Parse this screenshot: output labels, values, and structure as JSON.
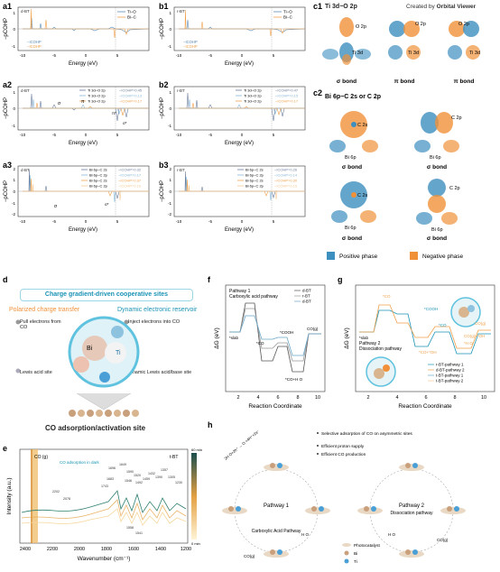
{
  "panels": {
    "a1": {
      "label": "a1",
      "corner": "d-BT",
      "legend": [
        "Ti−O",
        "Bi−C"
      ],
      "icohp": [
        "−ICOHP",
        "−ICOHP"
      ],
      "xlabel": "Energy (eV)",
      "ylabel": "−pCOHP",
      "xticks": [
        "-10",
        "-5",
        "0",
        "5"
      ],
      "yticks": [
        "1",
        "0",
        "-1"
      ]
    },
    "b1": {
      "label": "b1",
      "corner": "r-BT",
      "legend": [
        "Ti−O",
        "Bi−C"
      ],
      "icohp": [
        "−ICOHP",
        "−ICOHP"
      ],
      "xlabel": "Energy (eV)",
      "ylabel": "−pCOHP",
      "xticks": [
        "-10",
        "-5",
        "0",
        "5"
      ],
      "yticks": [
        "1",
        "0",
        "-1"
      ]
    },
    "a2": {
      "label": "a2",
      "corner": "d-BT",
      "legend": [
        "Ti 3d−O 2p",
        "Ti 3d−O 2p",
        "Ti 3d−O 2p"
      ],
      "icohp": [
        "−ICOHP=0.45",
        "−ICOHP=0.13",
        "−ICOHP=0.17"
      ],
      "xlabel": "Energy (eV)",
      "ylabel": "−pCOHP",
      "xticks": [
        "-10",
        "-5",
        "0",
        "5"
      ],
      "yticks": [
        "1",
        "0",
        "-1"
      ],
      "notes": [
        "σ",
        "π",
        "π*",
        "σ*"
      ]
    },
    "b2": {
      "label": "b2",
      "corner": "r-BT",
      "legend": [
        "Ti 3d−O 2p",
        "Ti 3d−O 2p",
        "Ti 3d−O 2p"
      ],
      "icohp": [
        "−ICOHP=0.47",
        "−ICOHP=0.15",
        "−ICOHP=0.17"
      ],
      "xlabel": "Energy (eV)",
      "ylabel": "−pCOHP",
      "xticks": [
        "-10",
        "-5",
        "0",
        "5"
      ],
      "yticks": [
        "1",
        "0",
        "-1"
      ]
    },
    "a3": {
      "label": "a3",
      "corner": "d-BT",
      "legend": [
        "Bi 6p−C 2s",
        "Bi 6p−C 2p",
        "Bi 6p−C 2s",
        "Bi 6p−C 2p"
      ],
      "icohp": [
        "−ICOHP=0.32",
        "−ICOHP=0.17",
        "−ICOHP=0.37",
        "−ICOHP=0.19"
      ],
      "xlabel": "Energy (eV)",
      "ylabel": "−pCOHP",
      "xticks": [
        "-10",
        "-5",
        "0",
        "5"
      ],
      "yticks": [
        "2",
        "1",
        "0",
        "-1",
        "-2"
      ],
      "notes": [
        "σ",
        "σ*"
      ]
    },
    "b3": {
      "label": "b3",
      "corner": "r-BT",
      "legend": [
        "Bi 6p−C 2s",
        "Bi 6p−C 2p",
        "Bi 6p−C 2s",
        "Bi 6p−C 2p"
      ],
      "icohp": [
        "−ICOHP=0.26",
        "−ICOHP=0.14",
        "−ICOHP=0.30",
        "−ICOHP=0.15"
      ],
      "xlabel": "Energy (eV)",
      "ylabel": "−pCOHP",
      "xticks": [
        "-10",
        "-5",
        "0",
        "5"
      ],
      "yticks": [
        "2",
        "1",
        "0",
        "-1",
        "-2"
      ]
    }
  },
  "c": {
    "c1_label": "c1",
    "c1_title": "Ti 3d−O 2p",
    "credit_prefix": "Created by ",
    "credit_name": "Orbital Viewer",
    "c1_orbitals": [
      [
        "O 2p",
        "Ti 3d"
      ],
      [
        "O 2p",
        "Ti 3d"
      ],
      [
        "O 2p",
        "Ti 3d"
      ]
    ],
    "c1_bonds": [
      "σ bond",
      "π bond",
      "π bond"
    ],
    "c2_label": "c2",
    "c2_title": "Bi 6p−C 2s or C 2p",
    "c2_orbitals": [
      [
        "C 2s",
        "Bi 6p"
      ],
      [
        "C 2p",
        "Bi 6p"
      ],
      [
        "C 2s",
        "Bi 6p"
      ],
      [
        "C 2p",
        "Bi 6p"
      ]
    ],
    "c2_bonds": [
      "σ bond",
      "σ bond",
      "σ bond",
      "σ bond"
    ],
    "legend": [
      "Positive phase",
      "Negative phase"
    ],
    "colors": {
      "positive": "#3d8fbf",
      "negative": "#f0913a"
    }
  },
  "d": {
    "label": "d",
    "title": "Charge gradient-driven cooperative sites",
    "left_head": "Polarized charge transfer",
    "right_head": "Dynamic electronic reservoir",
    "notes": [
      "Pull electrons from CO",
      "Inject electrons into CO",
      "Lewis acid site",
      "Dynamic Lewis acid/base site"
    ],
    "atoms": [
      "Bi",
      "Ti"
    ],
    "caption": "CO adsorption/activation site"
  },
  "f": {
    "label": "f",
    "pathway_title": "Pathway 1",
    "pathway_sub": "Carboxylic acid pathway",
    "legend": [
      "d-BT",
      "r-BT",
      "d-BT"
    ],
    "xlabel": "Reaction Coordinate",
    "ylabel": "ΔG (eV)",
    "xticks": [
      "2",
      "4",
      "6",
      "8",
      "10"
    ],
    "states": [
      "*slab",
      "*CO",
      "*COOH",
      "*CO+H O",
      "CO(g)"
    ]
  },
  "g": {
    "label": "g",
    "pathway_title": "Pathway 2",
    "pathway_sub": "Dissociation pathway",
    "legend": [
      "r-BT-pathway 1",
      "d-BT-pathway 2",
      "t-BT-pathway 1",
      "t-BT-pathway 2"
    ],
    "xlabel": "Reaction Coordinate",
    "ylabel": "ΔG (eV)",
    "xticks": [
      "2",
      "4",
      "6",
      "8",
      "10"
    ],
    "states": [
      "*slab",
      "*CO",
      "*COOH",
      "*CO",
      "CO(g)",
      "*H O",
      "*CO+*OH",
      "CO(g)+*OH"
    ]
  },
  "e": {
    "label": "e",
    "tag": "t-BT",
    "xlabel": "Wavenumber (cm⁻¹)",
    "ylabel": "Intensity (a.u.)",
    "xticks": [
      "2400",
      "2200",
      "2000",
      "1800",
      "1600",
      "1400",
      "1200"
    ],
    "co2": "CO (g)",
    "annotation": "CO adsorption in dark",
    "peaks": [
      "2202",
      "2078",
      "1696",
      "1649",
      "1590",
      "1546",
      "1520",
      "1492",
      "1459",
      "1432",
      "1390",
      "1357",
      "1305",
      "1230",
      "1743",
      "1683",
      "1558",
      "1541"
    ],
    "colorbar": [
      "60 min",
      "0 min"
    ]
  },
  "h": {
    "label": "h",
    "bullets": [
      "Selective adsorption of CO on asymmetric sites",
      "Efficient proton supply",
      "Efficient CO production"
    ],
    "reaction": "2H O+2h⁺ → O +4H⁺+2e⁻",
    "pathway1": "Pathway 1",
    "pathway1_sub": "Carboxylic Acid Pathway",
    "pathway2": "Pathway 2",
    "pathway2_sub": "Dissociation pathway",
    "legend": [
      "Photocatalyst",
      "Bi",
      "Ti"
    ],
    "molecules": [
      "CO(g)",
      "H O",
      "H O",
      "CO(g)"
    ]
  }
}
